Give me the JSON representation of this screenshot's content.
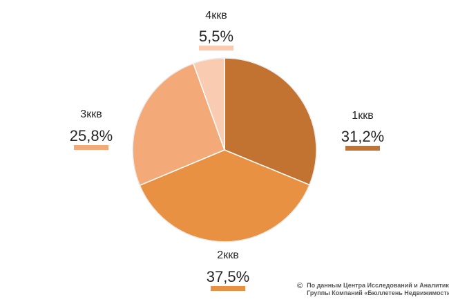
{
  "chart_data": {
    "type": "pie",
    "slices": [
      {
        "label": "1ккв",
        "value": 31.2,
        "value_text": "31,2%",
        "color": "#C27332"
      },
      {
        "label": "2ккв",
        "value": 37.5,
        "value_text": "37,5%",
        "color": "#E99143"
      },
      {
        "label": "3ккв",
        "value": 25.8,
        "value_text": "25,8%",
        "color": "#F4A978"
      },
      {
        "label": "4ккв",
        "value": 5.5,
        "value_text": "5,5%",
        "color": "#F9CBB0"
      }
    ],
    "legend": "none",
    "data_labels": "outside with color marker"
  },
  "credit": {
    "symbol": "©",
    "line1": "По данным Центра Исследований и Аналитики",
    "line2": "Группы Компаний «Бюллетень Недвижимости»"
  }
}
